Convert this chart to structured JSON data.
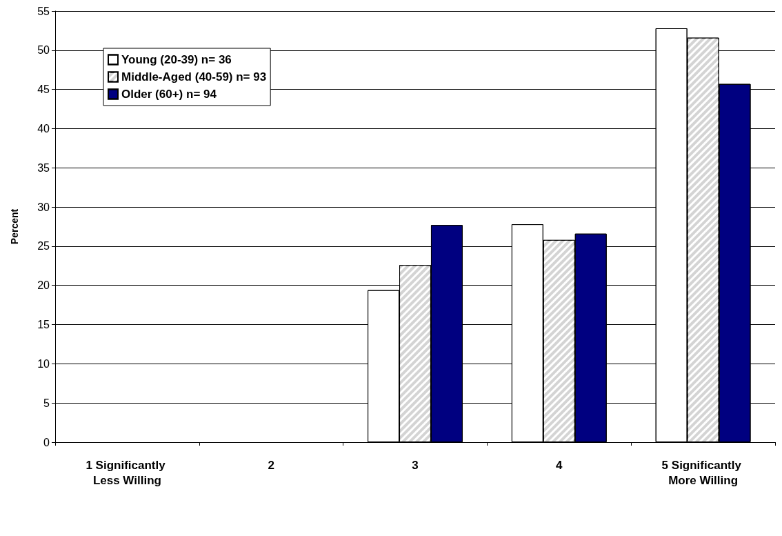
{
  "chart_data": {
    "type": "bar",
    "ylabel": "Percent",
    "categories": [
      "1 Significantly Less Willing",
      "2",
      "3",
      "4",
      "5 Significantly More Willing"
    ],
    "series": [
      {
        "name": "Young (20-39) n= 36",
        "color": "#ffffff",
        "values": [
          0,
          0,
          19.4,
          27.8,
          52.8
        ]
      },
      {
        "name": "Middle-Aged (40-59) n= 93",
        "color": "#d4d4d4",
        "values": [
          0,
          0,
          22.6,
          25.8,
          51.6
        ]
      },
      {
        "name": "Older (60+) n= 94",
        "color": "#000080",
        "values": [
          0,
          0,
          27.7,
          26.6,
          45.7
        ]
      }
    ],
    "ylim": [
      0,
      55
    ],
    "yticks": [
      0,
      5,
      10,
      15,
      20,
      25,
      30,
      35,
      40,
      45,
      50,
      55
    ],
    "grid": "y",
    "legend": "top left"
  }
}
